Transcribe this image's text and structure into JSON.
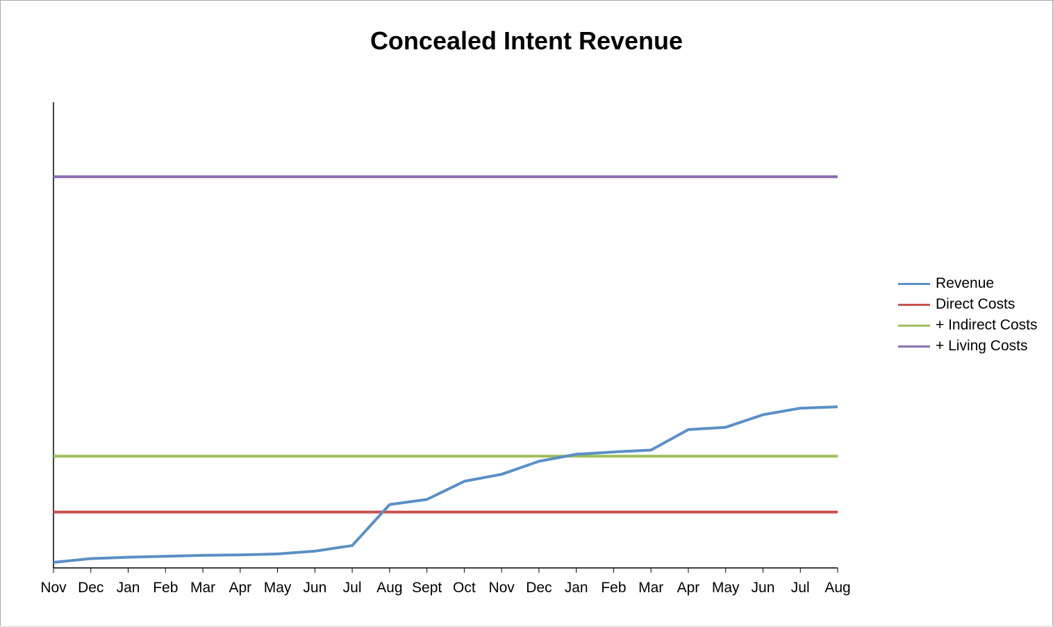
{
  "chart_data": {
    "type": "line",
    "title": "Concealed Intent Revenue",
    "xlabel": "",
    "ylabel": "",
    "categories": [
      "Nov",
      "Dec",
      "Jan",
      "Feb",
      "Mar",
      "Apr",
      "May",
      "Jun",
      "Jul",
      "Aug",
      "Sept",
      "Oct",
      "Nov",
      "Dec",
      "Jan",
      "Feb",
      "Mar",
      "Apr",
      "May",
      "Jun",
      "Jul",
      "Aug"
    ],
    "ylim": [
      0,
      100
    ],
    "grid": false,
    "legend_position": "right",
    "series": [
      {
        "name": "Revenue",
        "color": "#5b8fc5",
        "values": [
          1.2,
          2.0,
          2.3,
          2.5,
          2.7,
          2.8,
          3.0,
          3.6,
          4.8,
          13.6,
          14.7,
          18.6,
          20.1,
          22.9,
          24.4,
          24.9,
          25.3,
          29.7,
          30.2,
          32.9,
          34.3,
          34.6
        ]
      },
      {
        "name": "Direct Costs",
        "color": "#c9524e",
        "values": [
          12.0,
          12.0,
          12.0,
          12.0,
          12.0,
          12.0,
          12.0,
          12.0,
          12.0,
          12.0,
          12.0,
          12.0,
          12.0,
          12.0,
          12.0,
          12.0,
          12.0,
          12.0,
          12.0,
          12.0,
          12.0,
          12.0
        ]
      },
      {
        "name": "+ Indirect Costs",
        "color": "#9dbf5a",
        "values": [
          24.0,
          24.0,
          24.0,
          24.0,
          24.0,
          24.0,
          24.0,
          24.0,
          24.0,
          24.0,
          24.0,
          24.0,
          24.0,
          24.0,
          24.0,
          24.0,
          24.0,
          24.0,
          24.0,
          24.0,
          24.0,
          24.0
        ]
      },
      {
        "name": "+ Living Costs",
        "color": "#8a6fae",
        "values": [
          84.0,
          84.0,
          84.0,
          84.0,
          84.0,
          84.0,
          84.0,
          84.0,
          84.0,
          84.0,
          84.0,
          84.0,
          84.0,
          84.0,
          84.0,
          84.0,
          84.0,
          84.0,
          84.0,
          84.0,
          84.0,
          84.0
        ]
      }
    ]
  }
}
